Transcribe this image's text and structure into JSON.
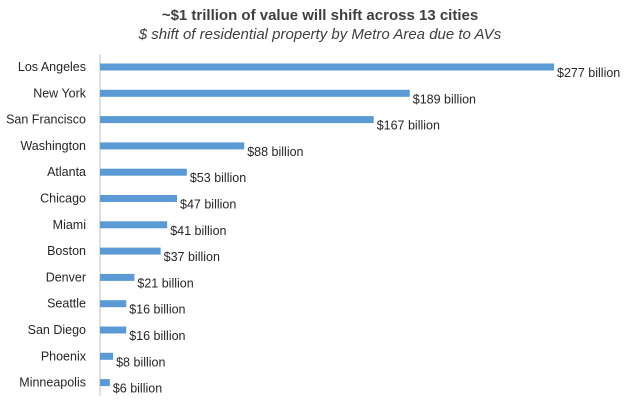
{
  "chart_data": {
    "type": "bar",
    "orientation": "horizontal",
    "title": "~$1 trillion of value will shift across 13 cities",
    "subtitle": "$ shift of residential property by Metro Area due to AVs",
    "xlabel": "",
    "ylabel": "",
    "categories": [
      "Los Angeles",
      "New York",
      "San Francisco",
      "Washington",
      "Atlanta",
      "Chicago",
      "Miami",
      "Boston",
      "Denver",
      "Seattle",
      "San Diego",
      "Phoenix",
      "Minneapolis"
    ],
    "values": [
      277,
      189,
      167,
      88,
      53,
      47,
      41,
      37,
      21,
      16,
      16,
      8,
      6
    ],
    "data_labels": [
      "$277 billion",
      "$189 billion",
      "$167 billion",
      "$88 billion",
      "$53 billion",
      "$47 billion",
      "$41 billion",
      "$37 billion",
      "$21 billion",
      "$16 billion",
      "$16 billion",
      "$8 billion",
      "$6 billion"
    ],
    "unit": "billion USD",
    "xlim": [
      0,
      277
    ],
    "bar_color": "#5b9bd5",
    "grid": false,
    "legend": false
  }
}
